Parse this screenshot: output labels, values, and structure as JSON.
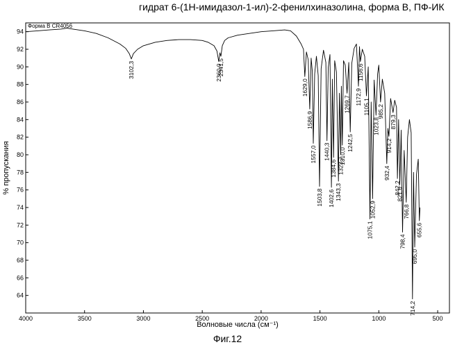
{
  "chart_data": {
    "type": "line",
    "title": "гидрат 6-(1H-имидазол-1-ил)-2-фенилхиназолина, форма B, ПФ-ИК",
    "series_label": "Форма B CR4056",
    "xlabel": "Волновые числа (см⁻¹)",
    "ylabel": "% пропускания",
    "xlim": [
      4000,
      400
    ],
    "ylim": [
      62,
      95
    ],
    "xticks": [
      "4000",
      "3500",
      "3000",
      "2500",
      "2000",
      "1500",
      "1000",
      "500"
    ],
    "xtick_values": [
      4000,
      3500,
      3000,
      2500,
      2000,
      1500,
      1000,
      500
    ],
    "yticks": [
      "64",
      "66",
      "68",
      "70",
      "72",
      "74",
      "76",
      "78",
      "80",
      "82",
      "84",
      "86",
      "88",
      "90",
      "92",
      "94"
    ],
    "ytick_values": [
      64,
      66,
      68,
      70,
      72,
      74,
      76,
      78,
      80,
      82,
      84,
      86,
      88,
      90,
      92,
      94
    ],
    "grid": false,
    "series": [
      {
        "x": [
          4000,
          3900,
          3800,
          3700,
          3650,
          3600,
          3500,
          3400,
          3300,
          3200,
          3150,
          3120,
          3102.3,
          3085,
          3050,
          3000,
          2900,
          2800,
          2700,
          2600,
          2500,
          2450,
          2400,
          2375,
          2360.0,
          2350,
          2341.5,
          2330,
          2310,
          2280,
          2200,
          2100,
          2000,
          1900,
          1800,
          1750,
          1700,
          1660,
          1640,
          1629.0,
          1615,
          1600,
          1586.9,
          1575,
          1565,
          1557.0,
          1545,
          1530,
          1515,
          1503.8,
          1490,
          1470,
          1450,
          1440.3,
          1430,
          1415,
          1402.6,
          1395,
          1384.6,
          1375,
          1360,
          1343.3,
          1335,
          1323.7,
          1318,
          1310.0,
          1300,
          1285,
          1269.7,
          1255,
          1242.5,
          1230,
          1210,
          1190,
          1172.9,
          1164,
          1156.6,
          1140,
          1120,
          1105.1,
          1090,
          1075.1,
          1065,
          1052.9,
          1040,
          1023.8,
          1010,
          1000,
          985.2,
          970,
          950,
          932.4,
          923,
          914.2,
          900,
          879.3,
          865,
          850,
          842.2,
          832,
          821.6,
          810,
          798.4,
          785,
          766.8,
          755,
          740,
          725,
          714.2,
          705,
          695.0,
          680,
          665,
          655.6,
          650
        ],
        "y": [
          94.0,
          94.1,
          94.2,
          94.3,
          94.4,
          94.3,
          94.1,
          93.8,
          93.3,
          92.6,
          92.1,
          91.5,
          90.9,
          91.5,
          92.0,
          92.4,
          92.8,
          93.0,
          93.1,
          93.1,
          93.0,
          92.8,
          92.4,
          91.8,
          90.6,
          91.6,
          91.2,
          92.4,
          93.0,
          93.3,
          93.6,
          93.8,
          94.0,
          94.1,
          94.2,
          94.1,
          93.5,
          92.6,
          92.0,
          88.9,
          91.7,
          90.8,
          85.2,
          91.0,
          89.5,
          81.3,
          89.2,
          91.2,
          89.0,
          76.4,
          89.8,
          91.9,
          90.5,
          81.6,
          89.9,
          91.4,
          76.3,
          88.6,
          79.7,
          90.7,
          89.4,
          77.0,
          87.0,
          80.0,
          87.8,
          81.1,
          90.7,
          90.2,
          87.0,
          90.5,
          82.6,
          90.4,
          92.1,
          92.6,
          87.8,
          92.3,
          90.6,
          92.0,
          91.2,
          86.7,
          90.0,
          72.7,
          86.0,
          75.0,
          88.5,
          84.5,
          89.2,
          90.2,
          86.0,
          88.6,
          87.0,
          79.0,
          83.0,
          82.1,
          86.4,
          84.8,
          86.2,
          85.4,
          77.3,
          84.0,
          76.6,
          82.8,
          71.2,
          80.5,
          74.6,
          82.0,
          84.0,
          82.5,
          63.6,
          78.0,
          69.5,
          77.8,
          79.5,
          72.5,
          74.0
        ]
      }
    ],
    "peak_labels": [
      {
        "x": 3102.3,
        "y": 90.9,
        "text": "3102,3"
      },
      {
        "x": 2360.0,
        "y": 90.6,
        "text": "2360,0"
      },
      {
        "x": 2341.5,
        "y": 91.2,
        "text": "2341,5"
      },
      {
        "x": 1629.0,
        "y": 88.9,
        "text": "1629,0"
      },
      {
        "x": 1586.9,
        "y": 85.2,
        "text": "1586,9"
      },
      {
        "x": 1557.0,
        "y": 81.3,
        "text": "1557,0"
      },
      {
        "x": 1503.8,
        "y": 76.4,
        "text": "1503,8"
      },
      {
        "x": 1440.3,
        "y": 81.6,
        "text": "1440,3"
      },
      {
        "x": 1402.6,
        "y": 76.3,
        "text": "1402,6"
      },
      {
        "x": 1384.6,
        "y": 79.7,
        "text": "1384,6"
      },
      {
        "x": 1343.3,
        "y": 77.0,
        "text": "1343,3"
      },
      {
        "x": 1323.7,
        "y": 80.0,
        "text": "1323,7"
      },
      {
        "x": 1310.0,
        "y": 81.1,
        "text": "1310,0"
      },
      {
        "x": 1269.7,
        "y": 87.0,
        "text": "1269,7"
      },
      {
        "x": 1242.5,
        "y": 82.6,
        "text": "1242,5"
      },
      {
        "x": 1172.9,
        "y": 87.8,
        "text": "1172,9"
      },
      {
        "x": 1156.6,
        "y": 90.6,
        "text": "1156,6"
      },
      {
        "x": 1105.1,
        "y": 86.7,
        "text": "1105,1"
      },
      {
        "x": 1075.1,
        "y": 72.7,
        "text": "1075,1"
      },
      {
        "x": 1052.9,
        "y": 75.0,
        "text": "1052,9"
      },
      {
        "x": 1023.8,
        "y": 84.5,
        "text": "1023,8"
      },
      {
        "x": 985.2,
        "y": 86.0,
        "text": "985,2"
      },
      {
        "x": 932.4,
        "y": 79.0,
        "text": "932,4"
      },
      {
        "x": 914.2,
        "y": 82.1,
        "text": "914,2"
      },
      {
        "x": 879.3,
        "y": 84.8,
        "text": "879,3"
      },
      {
        "x": 842.2,
        "y": 77.3,
        "text": "842,2"
      },
      {
        "x": 821.6,
        "y": 76.6,
        "text": "821,6"
      },
      {
        "x": 798.4,
        "y": 71.2,
        "text": "798,4"
      },
      {
        "x": 766.8,
        "y": 74.6,
        "text": "766,8"
      },
      {
        "x": 714.2,
        "y": 63.6,
        "text": "714,2"
      },
      {
        "x": 695.0,
        "y": 69.5,
        "text": "695,0"
      },
      {
        "x": 655.6,
        "y": 72.5,
        "text": "655,6"
      }
    ]
  },
  "figure_caption": "Фиг.12"
}
